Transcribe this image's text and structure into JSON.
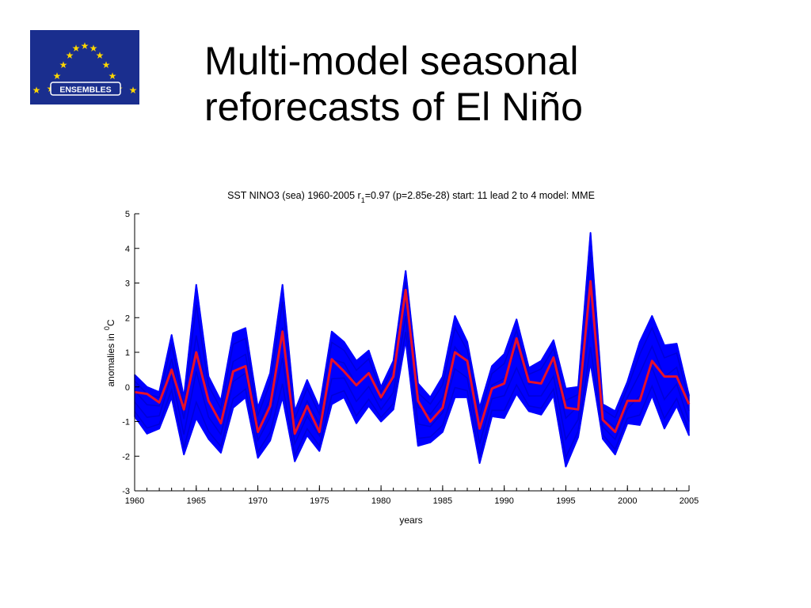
{
  "slide": {
    "title_line1": "Multi-model seasonal",
    "title_line2": "reforecasts of El Niño",
    "logo_text": "ENSEMBLES"
  },
  "colors": {
    "ensemble": "#0000ff",
    "mean": "#e8102a",
    "logo_bg": "#1a2e8e",
    "star": "#ffd700"
  },
  "chart_data": {
    "type": "line",
    "title_parts": {
      "prefix": "SST  NINO3 (sea)  1960-2005  r",
      "subscript": "1",
      "suffix": "=0.97 (p=2.85e-28)  start: 11 lead 2 to 4  model: MME"
    },
    "xlabel": "years",
    "ylabel": "anomalies in",
    "ylabel_sup": "0",
    "ylabel_unit": "C",
    "xlim": [
      1960,
      2005
    ],
    "ylim": [
      -3,
      5
    ],
    "xticks": [
      "1960",
      "1965",
      "1970",
      "1975",
      "1980",
      "1985",
      "1990",
      "1995",
      "2000",
      "2005"
    ],
    "yticks": [
      "5",
      "4",
      "3",
      "2",
      "1",
      "0",
      "-1",
      "-2",
      "-3"
    ],
    "grid": false,
    "x": [
      1960,
      1961,
      1962,
      1963,
      1964,
      1965,
      1966,
      1967,
      1968,
      1969,
      1970,
      1971,
      1972,
      1973,
      1974,
      1975,
      1976,
      1977,
      1978,
      1979,
      1980,
      1981,
      1982,
      1983,
      1984,
      1985,
      1986,
      1987,
      1988,
      1989,
      1990,
      1991,
      1992,
      1993,
      1994,
      1995,
      1996,
      1997,
      1998,
      1999,
      2000,
      2001,
      2002,
      2003,
      2004,
      2005
    ],
    "series": [
      {
        "name": "",
        "role": "ensemble-mean",
        "values": [
          -0.15,
          -0.2,
          -0.45,
          0.5,
          -0.65,
          1.0,
          -0.4,
          -1.05,
          0.45,
          0.6,
          -1.3,
          -0.55,
          1.6,
          -1.35,
          -0.55,
          -1.3,
          0.8,
          0.45,
          0.05,
          0.4,
          -0.3,
          0.3,
          2.8,
          -0.4,
          -1.0,
          -0.6,
          1.0,
          0.75,
          -1.2,
          -0.05,
          0.1,
          1.4,
          0.15,
          0.1,
          0.85,
          -0.6,
          -0.65,
          3.05,
          -0.95,
          -1.3,
          -0.4,
          -0.4,
          0.75,
          0.3,
          0.3,
          -0.5
        ]
      },
      {
        "name": "",
        "role": "ensemble-max",
        "values": [
          0.35,
          0.0,
          -0.15,
          1.5,
          -0.3,
          2.95,
          0.3,
          -0.4,
          1.55,
          1.7,
          -0.6,
          0.4,
          2.95,
          -0.7,
          0.2,
          -0.6,
          1.6,
          1.3,
          0.75,
          1.05,
          0.0,
          0.75,
          3.35,
          0.1,
          -0.3,
          0.3,
          2.05,
          1.3,
          -0.6,
          0.6,
          0.95,
          1.95,
          0.55,
          0.75,
          1.35,
          -0.05,
          0.0,
          4.45,
          -0.5,
          -0.7,
          0.15,
          1.3,
          2.05,
          1.2,
          1.25,
          -0.25
        ]
      },
      {
        "name": "",
        "role": "ensemble-min",
        "values": [
          -0.85,
          -1.35,
          -1.2,
          -0.3,
          -1.95,
          -0.9,
          -1.5,
          -1.9,
          -0.6,
          -0.3,
          -2.05,
          -1.55,
          -0.3,
          -2.15,
          -1.4,
          -1.85,
          -0.5,
          -0.3,
          -1.05,
          -0.55,
          -1.0,
          -0.65,
          1.35,
          -1.7,
          -1.6,
          -1.3,
          -0.3,
          -0.3,
          -2.2,
          -0.85,
          -0.9,
          -0.2,
          -0.7,
          -0.8,
          -0.25,
          -2.3,
          -1.45,
          0.7,
          -1.5,
          -1.95,
          -1.05,
          -1.1,
          -0.25,
          -1.2,
          -0.55,
          -1.4
        ]
      }
    ]
  }
}
